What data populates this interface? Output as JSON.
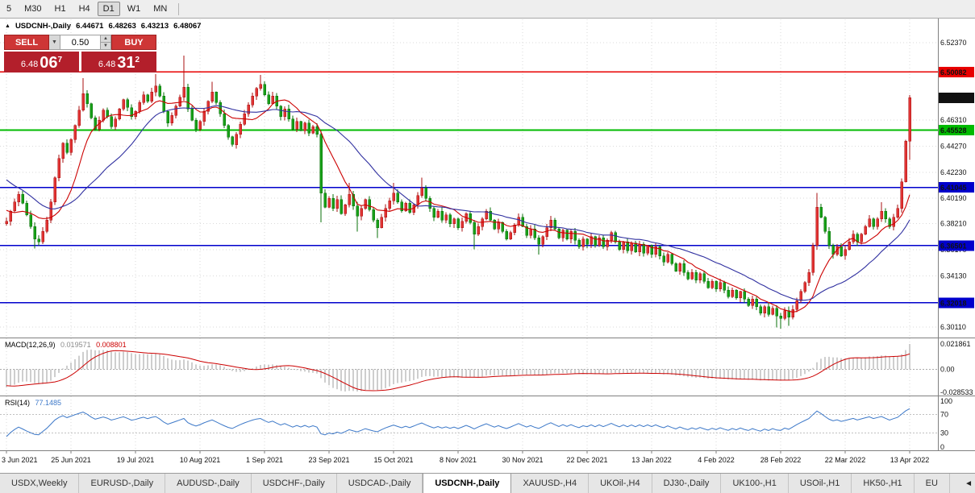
{
  "toolbar": {
    "timeframes": [
      "5",
      "M30",
      "H1",
      "H4",
      "D1",
      "W1",
      "MN"
    ],
    "active": "D1"
  },
  "chart": {
    "title": {
      "marker": "▲",
      "symbol": "USDCNH-,Daily",
      "open": "6.44671",
      "high": "6.48263",
      "low": "6.43213",
      "close": "6.48067"
    }
  },
  "trade": {
    "sell_label": "SELL",
    "buy_label": "BUY",
    "volume": "0.50",
    "bid": {
      "prefix": "6.48",
      "big": "06",
      "sup": "7"
    },
    "ask": {
      "prefix": "6.48",
      "big": "31",
      "sup": "2"
    },
    "dropdown_icon": "▼",
    "spin_up_icon": "▲",
    "spin_down_icon": "▼"
  },
  "chart_data": {
    "type": "candlestick",
    "symbol": "USDCNH-",
    "timeframe": "Daily",
    "x_labels": [
      "3 Jun 2021",
      "25 Jun 2021",
      "19 Jul 2021",
      "10 Aug 2021",
      "1 Sep 2021",
      "23 Sep 2021",
      "15 Oct 2021",
      "8 Nov 2021",
      "30 Nov 2021",
      "22 Dec 2021",
      "13 Jan 2022",
      "4 Feb 2022",
      "28 Feb 2022",
      "22 Mar 2022",
      "13 Apr 2022"
    ],
    "bars_per_label": 16,
    "pre_window_closes": [
      6.456,
      6.452,
      6.455,
      6.448,
      6.442,
      6.446,
      6.439,
      6.433,
      6.436,
      6.429,
      6.423,
      6.426,
      6.419,
      6.413,
      6.416,
      6.409,
      6.403,
      6.406,
      6.399,
      6.393,
      6.396,
      6.389,
      6.385,
      6.388,
      6.382
    ],
    "closes": [
      6.384,
      6.392,
      6.399,
      6.405,
      6.398,
      6.389,
      6.38,
      6.37,
      6.368,
      6.376,
      6.385,
      6.399,
      6.418,
      6.433,
      6.445,
      6.438,
      6.448,
      6.459,
      6.471,
      6.484,
      6.476,
      6.465,
      6.456,
      6.463,
      6.471,
      6.466,
      6.458,
      6.464,
      6.472,
      6.479,
      6.473,
      6.466,
      6.47,
      6.477,
      6.483,
      6.478,
      6.485,
      6.49,
      6.482,
      6.47,
      6.461,
      6.467,
      6.474,
      6.481,
      6.489,
      6.472,
      6.463,
      6.456,
      6.462,
      6.47,
      6.478,
      6.485,
      6.477,
      6.468,
      6.459,
      6.45,
      6.444,
      6.452,
      6.46,
      6.468,
      6.475,
      6.482,
      6.488,
      6.491,
      6.483,
      6.476,
      6.482,
      6.474,
      6.466,
      6.472,
      6.464,
      6.456,
      6.462,
      6.455,
      6.461,
      6.453,
      6.458,
      6.452,
      6.406,
      6.395,
      6.402,
      6.394,
      6.401,
      6.39,
      6.397,
      6.405,
      6.396,
      6.388,
      6.394,
      6.401,
      6.393,
      6.385,
      6.379,
      6.387,
      6.394,
      6.4,
      6.406,
      6.399,
      6.392,
      6.398,
      6.391,
      6.397,
      6.404,
      6.41,
      6.402,
      6.394,
      6.387,
      6.392,
      6.385,
      6.389,
      6.382,
      6.386,
      6.379,
      6.384,
      6.39,
      6.383,
      6.374,
      6.38,
      6.386,
      6.392,
      6.385,
      6.378,
      6.383,
      6.376,
      6.37,
      6.375,
      6.381,
      6.387,
      6.38,
      6.373,
      6.378,
      6.371,
      6.366,
      6.372,
      6.379,
      6.385,
      6.378,
      6.371,
      6.377,
      6.37,
      6.376,
      6.369,
      6.364,
      6.37,
      6.366,
      6.372,
      6.365,
      6.371,
      6.364,
      6.369,
      6.375,
      6.368,
      6.362,
      6.368,
      6.361,
      6.367,
      6.36,
      6.366,
      6.359,
      6.365,
      6.358,
      6.364,
      6.357,
      6.352,
      6.358,
      6.351,
      6.345,
      6.351,
      6.344,
      6.339,
      6.344,
      6.338,
      6.343,
      6.337,
      6.332,
      6.337,
      6.331,
      6.336,
      6.33,
      6.325,
      6.33,
      6.324,
      6.329,
      6.323,
      6.318,
      6.323,
      6.317,
      6.312,
      6.317,
      6.311,
      6.316,
      6.31,
      6.308,
      6.314,
      6.309,
      6.315,
      6.322,
      6.329,
      6.336,
      6.344,
      6.365,
      6.395,
      6.387,
      6.376,
      6.365,
      6.358,
      6.364,
      6.357,
      6.362,
      6.368,
      6.374,
      6.368,
      6.374,
      6.38,
      6.386,
      6.38,
      6.386,
      6.392,
      6.386,
      6.38,
      6.387,
      6.394,
      6.415,
      6.4467,
      6.4807
    ],
    "spikes": {
      "7": {
        "low": 6.3625
      },
      "19": {
        "high": 6.496
      },
      "37": {
        "high": 6.499
      },
      "44": {
        "high": 6.5135
      },
      "51": {
        "high": 6.493
      },
      "63": {
        "high": 6.4985
      },
      "78": {
        "low": 6.383
      },
      "85": {
        "high": 6.414
      },
      "87": {
        "low": 6.376
      },
      "92": {
        "low": 6.371
      },
      "96": {
        "high": 6.414
      },
      "103": {
        "high": 6.418
      },
      "116": {
        "low": 6.362
      },
      "132": {
        "low": 6.358
      },
      "191": {
        "low": 6.301
      },
      "192": {
        "low": 6.3
      },
      "194": {
        "low": 6.302
      },
      "201": {
        "high": 6.406
      },
      "217": {
        "high": 6.399
      },
      "224": {
        "high": 6.48263,
        "low": 6.43213
      }
    },
    "final_candle": {
      "open": 6.44671,
      "high": 6.48263,
      "low": 6.43213,
      "close": 6.48067
    },
    "y_axis_ticks": [
      {
        "label": "6.52370",
        "price": 6.5237
      },
      {
        "label": "6.46310",
        "price": 6.4631
      },
      {
        "label": "6.44270",
        "price": 6.4427
      },
      {
        "label": "6.42230",
        "price": 6.4223
      },
      {
        "label": "6.40190",
        "price": 6.4019
      },
      {
        "label": "6.38210",
        "price": 6.3821
      },
      {
        "label": "6.36170",
        "price": 6.3617
      },
      {
        "label": "6.34130",
        "price": 6.3413
      },
      {
        "label": "6.30110",
        "price": 6.3011
      }
    ],
    "hlines": [
      {
        "label": "6.50082",
        "price": 6.50082,
        "color": "#e80000",
        "width": 1.2
      },
      {
        "label": "6.45528",
        "price": 6.45528,
        "color": "#00bb00",
        "width": 2
      },
      {
        "label": "6.41045",
        "price": 6.41045,
        "color": "#0000cc",
        "width": 1.6
      },
      {
        "label": "6.36501",
        "price": 6.36501,
        "color": "#0000cc",
        "width": 1.6
      },
      {
        "label": "6.32018",
        "price": 6.32018,
        "color": "#0000cc",
        "width": 1.6
      }
    ],
    "current_price": {
      "label": "6.48067",
      "price": 6.48067,
      "color": "#111111"
    },
    "candle_colors": {
      "up": "#e03434",
      "up_border": "#aa1111",
      "down": "#18a018",
      "down_border": "#0a700a"
    },
    "ma_lines": [
      {
        "period": 10,
        "color": "#cc0000"
      },
      {
        "period": 25,
        "color": "#3030a0"
      }
    ],
    "macd": {
      "label": "MACD(12,26,9)",
      "value_main": "0.019571",
      "value_signal": "0.008801",
      "axis_labels": [
        "0.021861",
        "0.00",
        "-0.028533"
      ],
      "fast": 12,
      "slow": 26,
      "signal": 9,
      "histogram_color": "#c2c2c2",
      "signal_color": "#cc0000"
    },
    "rsi": {
      "label": "RSI(14)",
      "value": "77.1485",
      "period": 14,
      "axis_labels": [
        "100",
        "70",
        "30",
        "0"
      ],
      "levels": [
        70,
        30
      ],
      "line_color": "#3c78c8"
    }
  },
  "tabs": {
    "items": [
      "USDX,Weekly",
      "EURUSD-,Daily",
      "AUDUSD-,Daily",
      "USDCHF-,Daily",
      "USDCAD-,Daily",
      "USDCNH-,Daily",
      "XAUUSD-,H4",
      "UKOil-,H4",
      "DJ30-,Daily",
      "UK100-,H1",
      "USOil-,H1",
      "HK50-,H1",
      "EU"
    ],
    "active_index": 5,
    "scroll_left_icon": "◄"
  }
}
